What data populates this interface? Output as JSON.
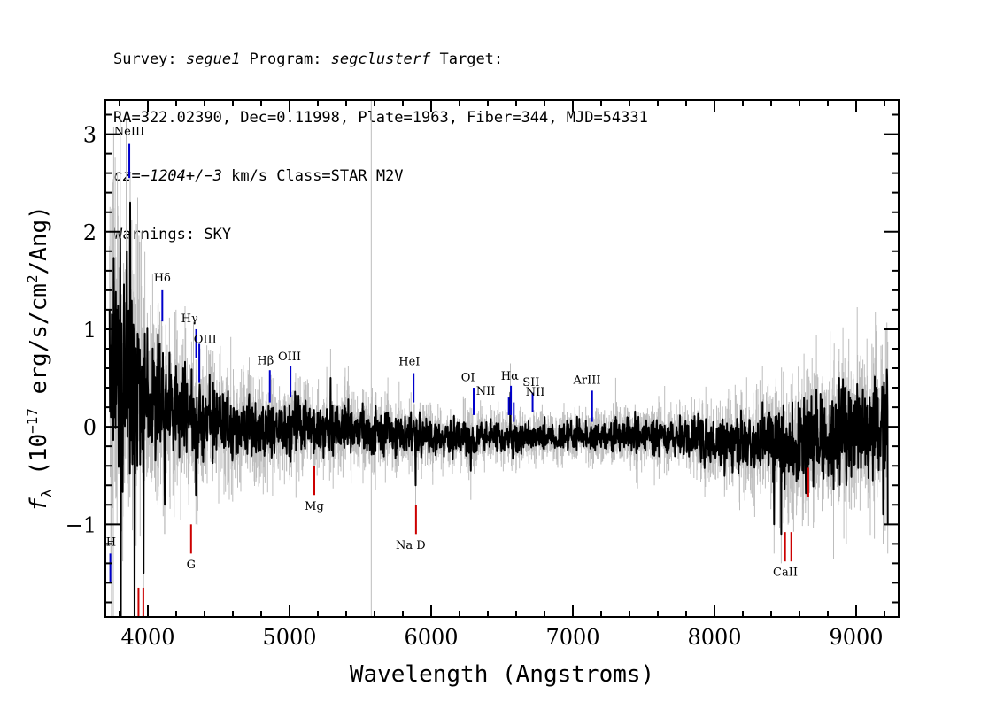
{
  "header": {
    "line1": {
      "survey_label": "Survey: ",
      "survey": "segue1",
      "program_label": " Program: ",
      "program": "segclusterf",
      "target_label": " Target:"
    },
    "line2": "RA=322.02390, Dec=0.11998, Plate=1963, Fiber=344, MJD=54331",
    "line3": {
      "cz_label": "cz",
      "cz_value": "=−1204+/−3",
      "rest": " km/s Class=STAR M2V"
    },
    "line4": "Warnings: SKY"
  },
  "chart_data": {
    "type": "line",
    "title": "",
    "xlabel": "Wavelength (Angstroms)",
    "ylabel_prefix": "f",
    "ylabel_sub": "λ",
    "ylabel_rest_1": " (10",
    "ylabel_exp": "−17",
    "ylabel_rest_2": " erg/s/cm",
    "ylabel_sq": "2",
    "ylabel_rest_3": "/Ang)",
    "xlim": [
      3700,
      9300
    ],
    "ylim": [
      -1.95,
      3.35
    ],
    "x_ticks": [
      4000,
      5000,
      6000,
      7000,
      8000,
      9000
    ],
    "x_tick_labels": [
      "4000",
      "5000",
      "6000",
      "7000",
      "8000",
      "9000"
    ],
    "y_ticks": [
      -1,
      0,
      1,
      2,
      3
    ],
    "y_tick_labels": [
      "−1",
      "0",
      "1",
      "2",
      "3"
    ],
    "x_minor_step": 200,
    "y_minor_step": 0.2,
    "colors": {
      "flux": "#000000",
      "noise": "#bdbdbd",
      "emission": "#0000cc",
      "absorption": "#cc0000",
      "sky_line": "#bdbdbd"
    },
    "sky_line_x": 5577,
    "flux_profile": [
      [
        3730,
        0.8
      ],
      [
        3800,
        0.6
      ],
      [
        3850,
        0.5
      ],
      [
        3900,
        0.35
      ],
      [
        4000,
        0.28
      ],
      [
        4100,
        0.22
      ],
      [
        4300,
        0.15
      ],
      [
        4500,
        0.05
      ],
      [
        4800,
        -0.05
      ],
      [
        5000,
        0.0
      ],
      [
        5500,
        -0.02
      ],
      [
        6000,
        -0.1
      ],
      [
        6500,
        -0.12
      ],
      [
        7000,
        -0.1
      ],
      [
        7500,
        -0.08
      ],
      [
        8000,
        -0.15
      ],
      [
        8400,
        -0.2
      ],
      [
        8800,
        -0.1
      ],
      [
        9000,
        -0.05
      ],
      [
        9200,
        -0.05
      ]
    ],
    "noise_profile": [
      [
        3730,
        2.0
      ],
      [
        3900,
        1.2
      ],
      [
        4000,
        0.8
      ],
      [
        4300,
        0.55
      ],
      [
        4700,
        0.4
      ],
      [
        5000,
        0.35
      ],
      [
        5500,
        0.3
      ],
      [
        6000,
        0.25
      ],
      [
        6500,
        0.2
      ],
      [
        7000,
        0.2
      ],
      [
        7500,
        0.22
      ],
      [
        8000,
        0.3
      ],
      [
        8400,
        0.45
      ],
      [
        8800,
        0.6
      ],
      [
        9000,
        0.6
      ],
      [
        9200,
        0.7
      ]
    ],
    "spikes": [
      [
        3780,
        1.2
      ],
      [
        3810,
        -2.3
      ],
      [
        3850,
        1.8
      ],
      [
        3875,
        2.3
      ],
      [
        3905,
        -2.1
      ],
      [
        3935,
        0.9
      ],
      [
        3970,
        -1.5
      ],
      [
        4070,
        0.95
      ],
      [
        4120,
        -0.8
      ],
      [
        4250,
        0.6
      ],
      [
        4340,
        -0.7
      ],
      [
        5290,
        0.5
      ],
      [
        5890,
        -0.6
      ],
      [
        6280,
        -0.45
      ],
      [
        6560,
        0.35
      ],
      [
        8420,
        -1.0
      ],
      [
        8470,
        -1.1
      ],
      [
        8550,
        0.25
      ],
      [
        8660,
        -0.4
      ],
      [
        8880,
        0.5
      ],
      [
        8920,
        0.4
      ],
      [
        9140,
        0.4
      ],
      [
        9190,
        -0.9
      ],
      [
        9230,
        -1.0
      ]
    ],
    "lines": [
      {
        "label": "NeIII",
        "x": 3869,
        "y0": 2.55,
        "y1": 2.9,
        "kind": "emission",
        "lx": 3869,
        "ly": 2.99
      },
      {
        "label": "Hδ",
        "x": 4102,
        "y0": 1.08,
        "y1": 1.4,
        "kind": "emission",
        "lx": 4102,
        "ly": 1.49
      },
      {
        "label": "Hγ",
        "x": 4341,
        "y0": 0.7,
        "y1": 1.0,
        "kind": "emission",
        "lx": 4295,
        "ly": 1.07
      },
      {
        "label": "OIII",
        "x": 4363,
        "y0": 0.45,
        "y1": 0.85,
        "kind": "emission",
        "lx": 4405,
        "ly": 0.86
      },
      {
        "label": "Hβ",
        "x": 4861,
        "y0": 0.25,
        "y1": 0.58,
        "kind": "emission",
        "lx": 4830,
        "ly": 0.64
      },
      {
        "label": "OIII",
        "x": 5007,
        "y0": 0.3,
        "y1": 0.62,
        "kind": "emission",
        "lx": 5000,
        "ly": 0.68
      },
      {
        "label": "HeI",
        "x": 5876,
        "y0": 0.25,
        "y1": 0.55,
        "kind": "emission",
        "lx": 5846,
        "ly": 0.63
      },
      {
        "label": "OI",
        "x": 6300,
        "y0": 0.12,
        "y1": 0.4,
        "kind": "emission",
        "lx": 6260,
        "ly": 0.47
      },
      {
        "label": "NII",
        "x": 6548,
        "y0": 0.12,
        "y1": 0.3,
        "kind": "emission",
        "lx": 6385,
        "ly": 0.33
      },
      {
        "label": "Hα",
        "x": 6563,
        "y0": 0.12,
        "y1": 0.42,
        "kind": "emission",
        "lx": 6555,
        "ly": 0.48
      },
      {
        "label": "NII",
        "x": 6583,
        "y0": 0.05,
        "y1": 0.25,
        "kind": "emission",
        "lx": 6735,
        "ly": 0.32
      },
      {
        "label": "SII",
        "x": 6716,
        "y0": 0.15,
        "y1": 0.35,
        "kind": "emission",
        "lx": 6705,
        "ly": 0.42
      },
      {
        "label": "ArIII",
        "x": 7136,
        "y0": 0.05,
        "y1": 0.37,
        "kind": "emission",
        "lx": 7100,
        "ly": 0.44
      },
      {
        "label": "H",
        "x": 3735,
        "y0": -1.6,
        "y1": -1.3,
        "kind": "emission",
        "lx": 3740,
        "ly": -1.22
      },
      {
        "label": "",
        "x": 3934,
        "y0": -1.95,
        "y1": -1.65,
        "kind": "absorption",
        "lx": 0,
        "ly": 0
      },
      {
        "label": "",
        "x": 3968,
        "y0": -1.95,
        "y1": -1.65,
        "kind": "absorption",
        "lx": 0,
        "ly": 0
      },
      {
        "label": "G",
        "x": 4305,
        "y0": -1.3,
        "y1": -1.0,
        "kind": "absorption",
        "lx": 4305,
        "ly": -1.45
      },
      {
        "label": "Mg",
        "x": 5175,
        "y0": -0.7,
        "y1": -0.4,
        "kind": "absorption",
        "lx": 5175,
        "ly": -0.85
      },
      {
        "label": "Na D",
        "x": 5893,
        "y0": -1.1,
        "y1": -0.8,
        "kind": "absorption",
        "lx": 5855,
        "ly": -1.25
      },
      {
        "label": "CaII",
        "x": 8498,
        "y0": -1.38,
        "y1": -1.08,
        "kind": "absorption",
        "lx": 8500,
        "ly": -1.53
      },
      {
        "label": "",
        "x": 8542,
        "y0": -1.38,
        "y1": -1.08,
        "kind": "absorption",
        "lx": 0,
        "ly": 0
      },
      {
        "label": "",
        "x": 8662,
        "y0": -0.72,
        "y1": -0.42,
        "kind": "absorption",
        "lx": 0,
        "ly": 0
      }
    ]
  }
}
